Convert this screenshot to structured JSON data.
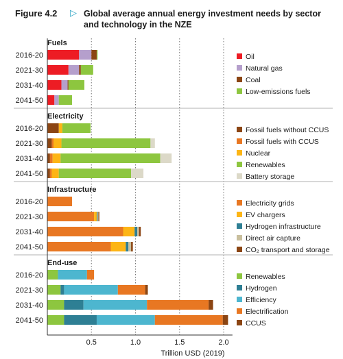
{
  "figure": {
    "label": "Figure 4.2",
    "arrow": "▷",
    "title": "Global average annual energy investment needs by sector and technology in the NZE"
  },
  "chart_data": {
    "type": "bar",
    "orientation": "horizontal",
    "stacked": true,
    "title": "Global average annual energy investment needs by sector and technology in the NZE",
    "xlabel": "Trillion USD (2019)",
    "xlim": [
      0,
      2.1
    ],
    "xticks": [
      0.5,
      1.0,
      1.5,
      2.0
    ],
    "xtick_labels": [
      "0.5",
      "1.0",
      "1.5",
      "2.0"
    ],
    "grid": "vertical dotted",
    "legend_position": "right",
    "colors": {
      "oil": "#ed1c24",
      "natural_gas": "#b59fcc",
      "coal": "#8b4513",
      "low_emissions_fuels": "#8dc63f",
      "fossil_no_ccus": "#8b4513",
      "fossil_ccus": "#e87722",
      "nuclear": "#fdb515",
      "renewables": "#8dc63f",
      "battery": "#dcd9c8",
      "grids": "#e87722",
      "ev_chargers": "#fdb515",
      "hydrogen_infra": "#2e7f94",
      "dac": "#c9bf9e",
      "co2_transport": "#8b4513",
      "enduse_renewables": "#8dc63f",
      "hydrogen": "#2e7f94",
      "efficiency": "#4db6cf",
      "electrification": "#e87722",
      "ccus": "#8b4513"
    },
    "panels": [
      {
        "name": "Fuels",
        "categories": [
          "2016-20",
          "2021-30",
          "2031-40",
          "2041-50"
        ],
        "series": [
          {
            "name": "Oil",
            "color_key": "oil",
            "values": [
              0.36,
              0.24,
              0.16,
              0.08
            ]
          },
          {
            "name": "Natural gas",
            "color_key": "natural_gas",
            "values": [
              0.14,
              0.12,
              0.07,
              0.05
            ]
          },
          {
            "name": "Coal",
            "color_key": "coal",
            "values": [
              0.06,
              0.02,
              0.01,
              0.0
            ]
          },
          {
            "name": "Low-emissions fuels",
            "color_key": "low_emissions_fuels",
            "values": [
              0.01,
              0.14,
              0.18,
              0.15
            ]
          }
        ]
      },
      {
        "name": "Electricity",
        "categories": [
          "2016-20",
          "2021-30",
          "2031-40",
          "2041-50"
        ],
        "series": [
          {
            "name": "Fossil fuels without CCUS",
            "color_key": "fossil_no_ccus",
            "values": [
              0.13,
              0.05,
              0.03,
              0.03
            ]
          },
          {
            "name": "Fossil fuels with CCUS",
            "color_key": "fossil_ccus",
            "values": [
              0.0,
              0.02,
              0.03,
              0.02
            ]
          },
          {
            "name": "Nuclear",
            "color_key": "nuclear",
            "values": [
              0.04,
              0.09,
              0.09,
              0.08
            ]
          },
          {
            "name": "Renewables",
            "color_key": "renewables",
            "values": [
              0.32,
              1.01,
              1.13,
              0.82
            ]
          },
          {
            "name": "Battery storage",
            "color_key": "battery",
            "values": [
              0.0,
              0.05,
              0.13,
              0.14
            ]
          }
        ]
      },
      {
        "name": "Infrastructure",
        "categories": [
          "2016-20",
          "2021-30",
          "2031-40",
          "2041-50"
        ],
        "series": [
          {
            "name": "Electricity grids",
            "color_key": "grids",
            "values": [
              0.28,
              0.53,
              0.86,
              0.72
            ]
          },
          {
            "name": "EV chargers",
            "color_key": "ev_chargers",
            "values": [
              0.0,
              0.03,
              0.13,
              0.17
            ]
          },
          {
            "name": "Hydrogen infrastructure",
            "color_key": "hydrogen_infra",
            "values": [
              0.0,
              0.01,
              0.03,
              0.03
            ]
          },
          {
            "name": "Direct air capture",
            "color_key": "dac",
            "values": [
              0.0,
              0.01,
              0.02,
              0.03
            ]
          },
          {
            "name": "CO₂ transport and storage",
            "color_key": "co2_transport",
            "values": [
              0.0,
              0.01,
              0.02,
              0.02
            ]
          }
        ]
      },
      {
        "name": "End-use",
        "categories": [
          "2016-20",
          "2021-30",
          "2031-40",
          "2041-50"
        ],
        "series": [
          {
            "name": "Renewables",
            "color_key": "enduse_renewables",
            "values": [
              0.12,
              0.15,
              0.19,
              0.19
            ]
          },
          {
            "name": "Hydrogen",
            "color_key": "hydrogen",
            "values": [
              0.0,
              0.04,
              0.22,
              0.37
            ]
          },
          {
            "name": "Efficiency",
            "color_key": "efficiency",
            "values": [
              0.33,
              0.61,
              0.72,
              0.66
            ]
          },
          {
            "name": "Electrification",
            "color_key": "electrification",
            "values": [
              0.08,
              0.31,
              0.7,
              0.77
            ]
          },
          {
            "name": "CCUS",
            "color_key": "ccus",
            "values": [
              0.0,
              0.03,
              0.05,
              0.06
            ]
          }
        ]
      }
    ]
  }
}
